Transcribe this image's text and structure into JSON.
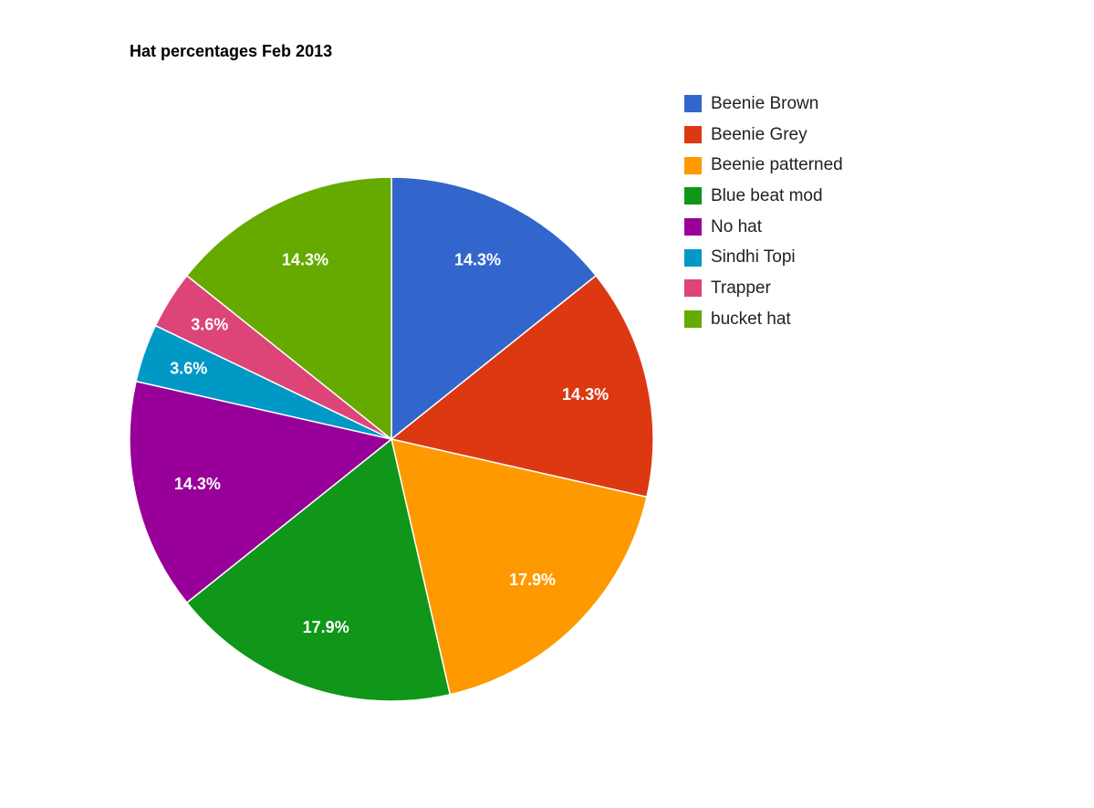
{
  "chart_data": {
    "type": "pie",
    "title": "Hat percentages Feb 2013",
    "categories": [
      "Beenie Brown",
      "Beenie Grey",
      "Beenie patterned",
      "Blue beat mod",
      "No hat",
      "Sindhi Topi",
      "Trapper",
      "bucket hat"
    ],
    "values": [
      14.3,
      14.3,
      17.9,
      17.9,
      14.3,
      3.6,
      3.6,
      14.3
    ],
    "data_labels": [
      "14.3%",
      "14.3%",
      "17.9%",
      "17.9%",
      "14.3%",
      "3.6%",
      "3.6%",
      "14.3%"
    ],
    "colors": [
      "#3366cc",
      "#dc3912",
      "#ff9900",
      "#109618",
      "#990099",
      "#0099c6",
      "#dd4477",
      "#66aa00"
    ],
    "legend_position": "right"
  }
}
